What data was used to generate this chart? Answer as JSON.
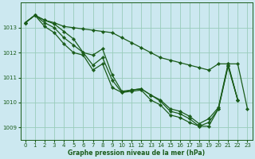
{
  "bg_color": "#cce8f0",
  "grid_color": "#99ccbb",
  "line_color": "#1a5c1a",
  "xlabel": "Graphe pression niveau de la mer (hPa)",
  "ylim": [
    1008.5,
    1014.0
  ],
  "xlim": [
    -0.5,
    23.5
  ],
  "yticks": [
    1009,
    1010,
    1011,
    1012,
    1013
  ],
  "xticks": [
    0,
    1,
    2,
    3,
    4,
    5,
    6,
    7,
    8,
    9,
    10,
    11,
    12,
    13,
    14,
    15,
    16,
    17,
    18,
    19,
    20,
    21,
    22,
    23
  ],
  "series": [
    {
      "x": [
        0,
        1,
        2,
        3,
        4,
        5,
        6,
        7,
        8,
        9,
        10,
        11,
        12,
        13,
        14,
        15,
        16,
        17,
        18,
        19,
        20,
        21,
        22,
        23
      ],
      "y": [
        1013.2,
        1013.5,
        1013.3,
        1013.2,
        1013.05,
        1013.0,
        1012.95,
        1012.9,
        1012.85,
        1012.8,
        1012.6,
        1012.4,
        1012.2,
        1012.0,
        1011.8,
        1011.7,
        1011.6,
        1011.5,
        1011.4,
        1011.3,
        1011.55,
        1011.55,
        1011.55,
        1009.75
      ]
    },
    {
      "x": [
        0,
        1,
        2,
        3,
        4,
        5,
        6,
        7,
        8,
        9,
        10,
        11,
        12,
        13,
        14,
        15,
        16,
        17,
        18,
        19,
        20,
        21,
        22
      ],
      "y": [
        1013.2,
        1013.5,
        1013.3,
        1013.15,
        1012.85,
        1012.55,
        1012.0,
        1011.9,
        1012.15,
        1011.1,
        1010.45,
        1010.5,
        1010.55,
        1010.3,
        1010.1,
        1009.75,
        1009.65,
        1009.45,
        1009.15,
        1009.35,
        1009.8,
        1011.55,
        1010.1
      ]
    },
    {
      "x": [
        0,
        1,
        2,
        3,
        4,
        5,
        6,
        7,
        8,
        9,
        10,
        11,
        12,
        13,
        14,
        15,
        16,
        17,
        18,
        19,
        20,
        21,
        22
      ],
      "y": [
        1013.2,
        1013.5,
        1013.2,
        1013.0,
        1012.6,
        1012.3,
        1012.0,
        1011.5,
        1011.8,
        1010.9,
        1010.4,
        1010.5,
        1010.55,
        1010.3,
        1010.05,
        1009.65,
        1009.55,
        1009.35,
        1009.05,
        1009.2,
        1009.75,
        1011.5,
        1010.1
      ]
    },
    {
      "x": [
        0,
        1,
        2,
        3,
        4,
        5,
        6,
        7,
        8,
        9,
        10,
        11,
        12,
        13,
        14,
        15,
        16,
        17,
        18,
        19,
        20,
        21,
        22
      ],
      "y": [
        1013.2,
        1013.5,
        1013.05,
        1012.8,
        1012.35,
        1012.0,
        1011.9,
        1011.3,
        1011.55,
        1010.6,
        1010.4,
        1010.45,
        1010.5,
        1010.1,
        1009.9,
        1009.5,
        1009.4,
        1009.2,
        1009.05,
        1009.05,
        1009.75,
        1011.45,
        1010.1
      ]
    }
  ]
}
